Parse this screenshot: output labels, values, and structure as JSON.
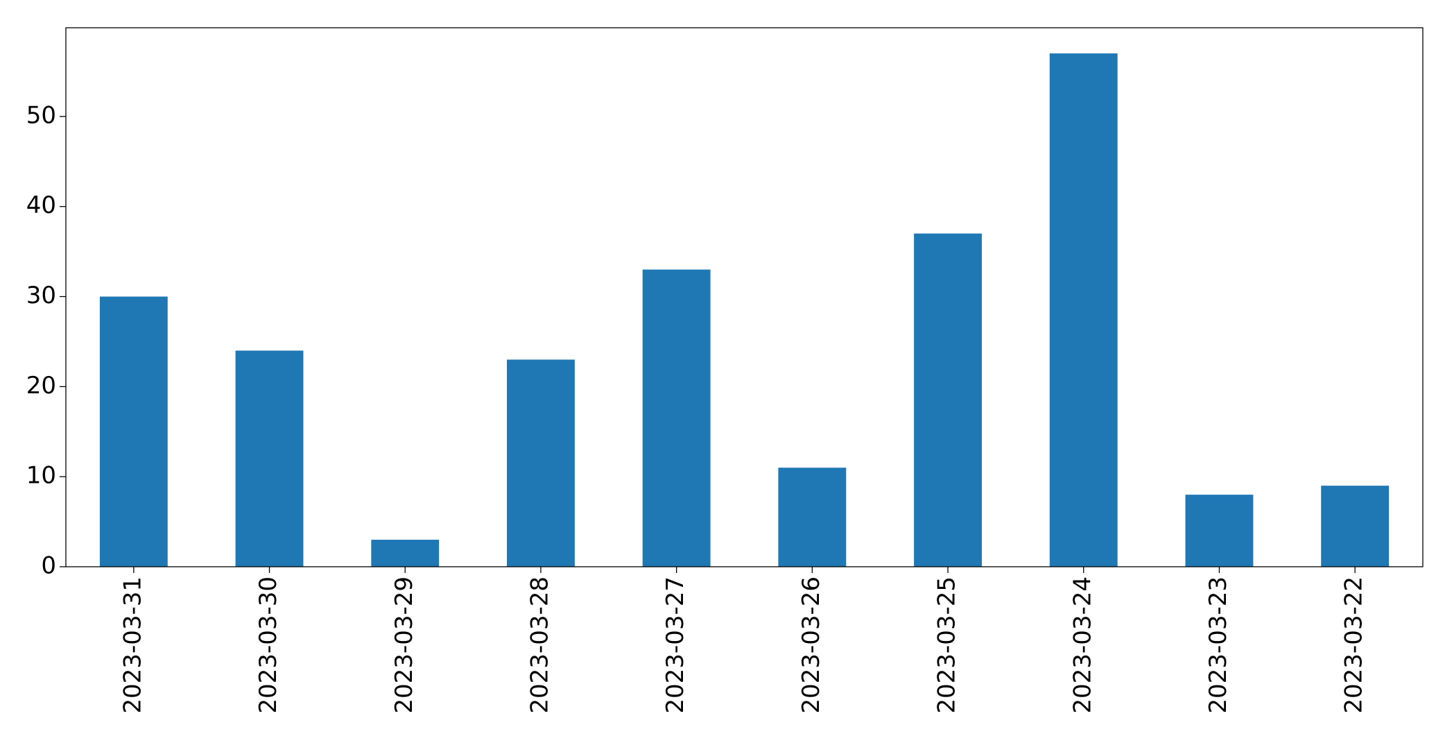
{
  "chart_data": {
    "type": "bar",
    "categories": [
      "2023-03-31",
      "2023-03-30",
      "2023-03-29",
      "2023-03-28",
      "2023-03-27",
      "2023-03-26",
      "2023-03-25",
      "2023-03-24",
      "2023-03-23",
      "2023-03-22"
    ],
    "values": [
      30,
      24,
      3,
      23,
      33,
      11,
      37,
      57,
      8,
      9
    ],
    "color": "#1f77b4",
    "ylim": [
      0,
      59.85
    ],
    "yticks": [
      0,
      10,
      20,
      30,
      40,
      50
    ],
    "grid": false
  }
}
